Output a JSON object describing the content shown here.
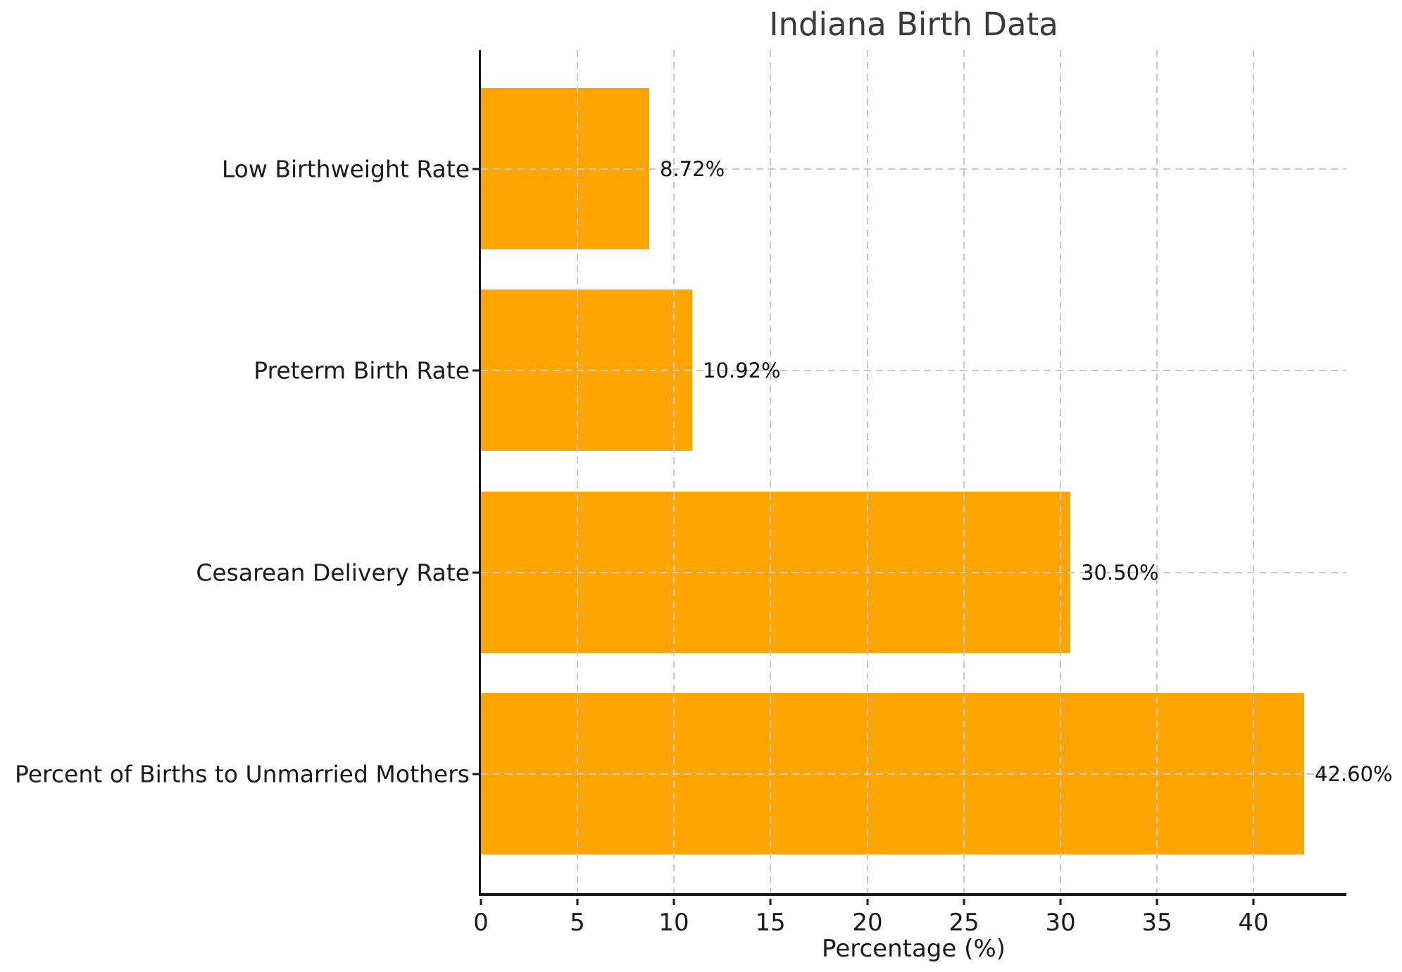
{
  "chart_data": {
    "type": "bar",
    "orientation": "horizontal",
    "title": "Indiana Birth Data",
    "xlabel": "Percentage (%)",
    "ylabel": "",
    "categories": [
      "Low Birthweight Rate",
      "Preterm Birth Rate",
      "Cesarean Delivery Rate",
      "Percent of Births to Unmarried Mothers"
    ],
    "values": [
      8.72,
      10.92,
      30.5,
      42.6
    ],
    "value_labels": [
      "8.72%",
      "10.92%",
      "30.50%",
      "42.60%"
    ],
    "xticks": [
      0,
      5,
      10,
      15,
      20,
      25,
      30,
      35,
      40
    ],
    "xtick_labels": [
      "0",
      "5",
      "10",
      "15",
      "20",
      "25",
      "30",
      "35",
      "40"
    ],
    "xlim": [
      0,
      44.8
    ],
    "grid": true,
    "grid_style": "dashed",
    "grid_over_bars": true,
    "legend": "none",
    "bar_color": "#FFA500",
    "grid_color": "#c9c9c9",
    "axis_color": "#1a1a1a",
    "title_color": "#3a3a3a"
  }
}
